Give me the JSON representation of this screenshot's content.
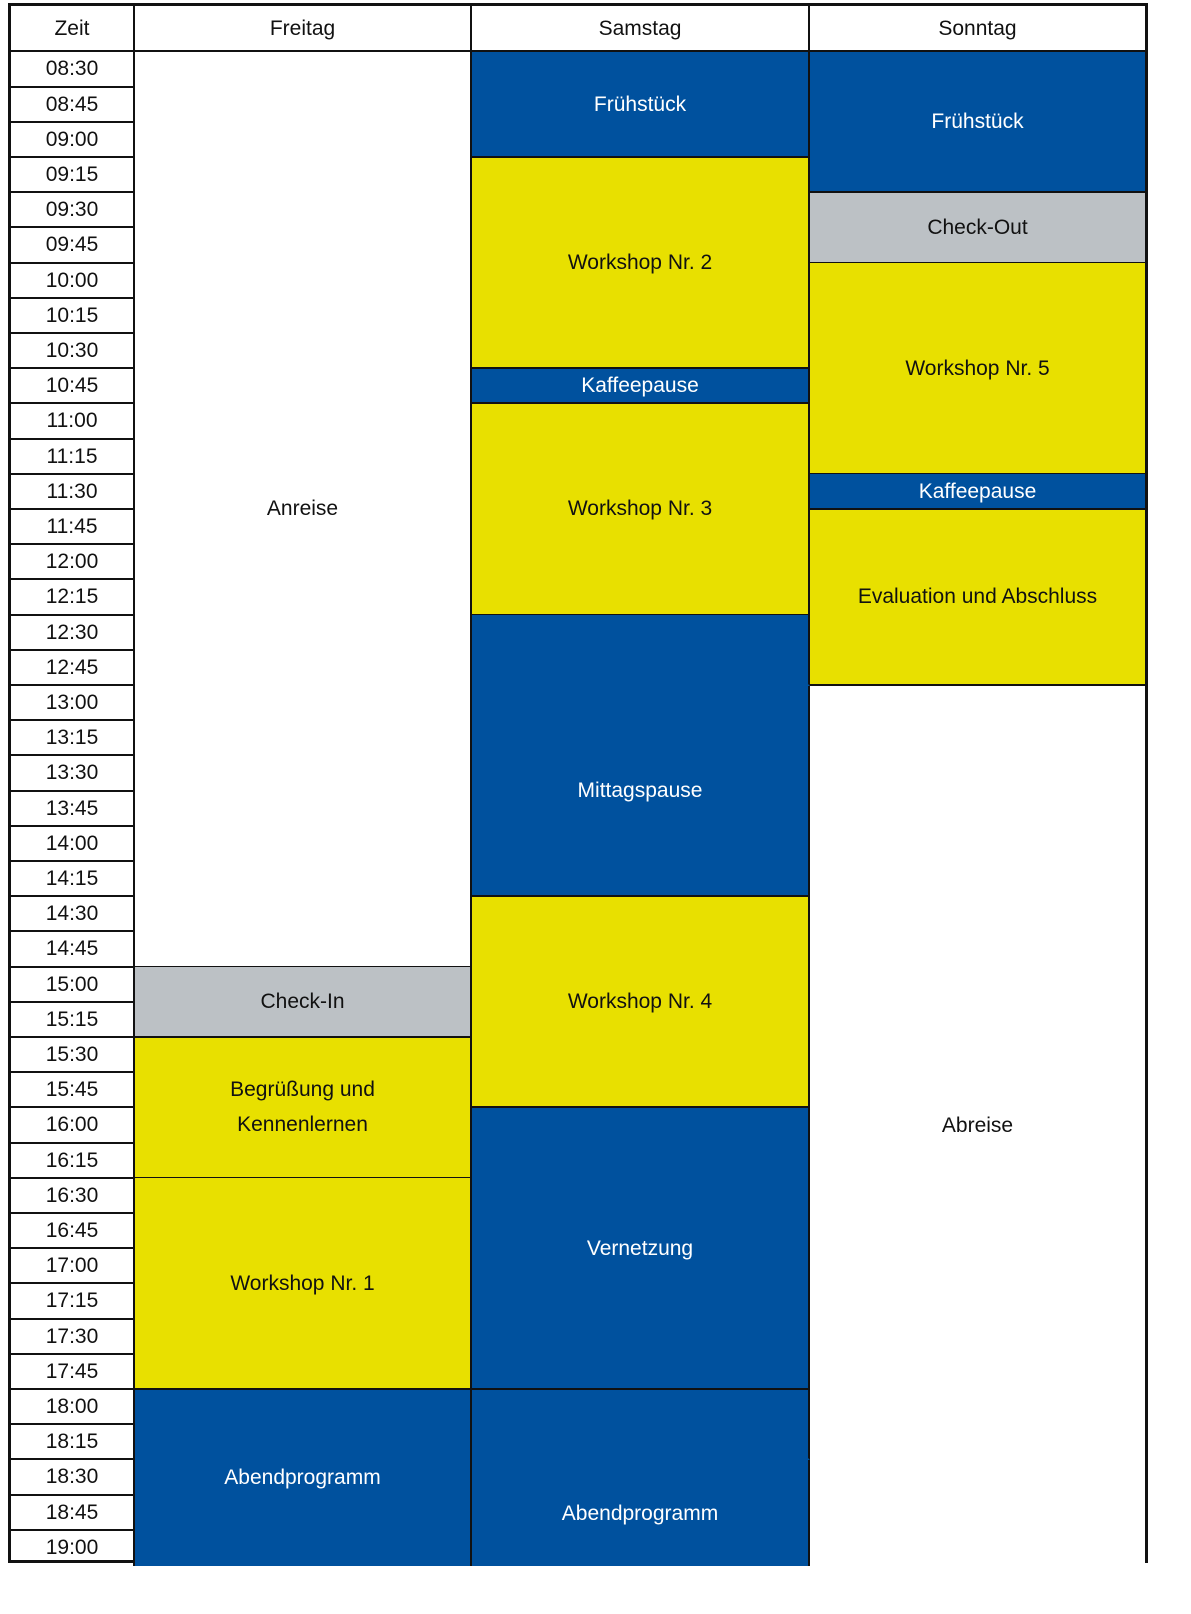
{
  "headers": [
    "Zeit",
    "Freitag",
    "Samstag",
    "Sonntag"
  ],
  "times": [
    "08:30",
    "08:45",
    "09:00",
    "09:15",
    "09:30",
    "09:45",
    "10:00",
    "10:15",
    "10:30",
    "10:45",
    "11:00",
    "11:15",
    "11:30",
    "11:45",
    "12:00",
    "12:15",
    "12:30",
    "12:45",
    "13:00",
    "13:15",
    "13:30",
    "13:45",
    "14:00",
    "14:15",
    "14:30",
    "14:45",
    "15:00",
    "15:15",
    "15:30",
    "15:45",
    "16:00",
    "16:15",
    "16:30",
    "16:45",
    "17:00",
    "17:15",
    "17:30",
    "17:45",
    "18:00",
    "18:15",
    "18:30",
    "18:45",
    "19:00"
  ],
  "colors": {
    "blue": "#00519e",
    "yellow": "#e8e000",
    "gray": "#bcc1c5",
    "white": "#ffffff"
  },
  "days": [
    {
      "name": "Freitag",
      "events": [
        {
          "label": "Anreise",
          "start": "08:30",
          "end": "14:45",
          "color": "white"
        },
        {
          "label": "Check-In",
          "start": "15:00",
          "end": "15:15",
          "color": "gray"
        },
        {
          "label": "Begrüßung und Kennenlernen",
          "start": "15:30",
          "end": "16:15",
          "color": "yellow"
        },
        {
          "label": "Workshop Nr. 1",
          "start": "16:30",
          "end": "17:45",
          "color": "yellow"
        },
        {
          "label": "Abendprogramm",
          "start": "18:00",
          "end": "19:00",
          "color": "blue"
        }
      ]
    },
    {
      "name": "Samstag",
      "events": [
        {
          "label": "Frühstück",
          "start": "08:30",
          "end": "09:00",
          "color": "blue"
        },
        {
          "label": "Workshop Nr. 2",
          "start": "09:15",
          "end": "10:30",
          "color": "yellow"
        },
        {
          "label": "Kaffeepause",
          "start": "10:45",
          "end": "10:45",
          "color": "blue"
        },
        {
          "label": "Workshop Nr. 3",
          "start": "11:00",
          "end": "12:15",
          "color": "yellow"
        },
        {
          "label": "",
          "start": "12:30",
          "end": "12:45",
          "color": "blue"
        },
        {
          "label": "Mittagspause",
          "start": "13:00",
          "end": "14:15",
          "color": "blue"
        },
        {
          "label": "Workshop Nr. 4",
          "start": "14:30",
          "end": "15:45",
          "color": "yellow"
        },
        {
          "label": "Vernetzung",
          "start": "16:00",
          "end": "17:45",
          "color": "blue"
        },
        {
          "label": "",
          "start": "18:00",
          "end": "18:15",
          "color": "blue"
        },
        {
          "label": "Abendprogramm",
          "start": "18:30",
          "end": "19:00",
          "color": "blue"
        }
      ]
    },
    {
      "name": "Sonntag",
      "events": [
        {
          "label": "Frühstück",
          "start": "08:30",
          "end": "09:15",
          "color": "blue"
        },
        {
          "label": "Check-Out",
          "start": "09:30",
          "end": "09:45",
          "color": "gray"
        },
        {
          "label": "Workshop Nr. 5",
          "start": "10:00",
          "end": "11:15",
          "color": "yellow"
        },
        {
          "label": "Kaffeepause",
          "start": "11:30",
          "end": "11:30",
          "color": "blue"
        },
        {
          "label": "Evaluation und Abschluss",
          "start": "11:45",
          "end": "12:45",
          "color": "yellow"
        },
        {
          "label": "Abreise",
          "start": "13:00",
          "end": "19:00",
          "color": "white"
        }
      ]
    }
  ]
}
